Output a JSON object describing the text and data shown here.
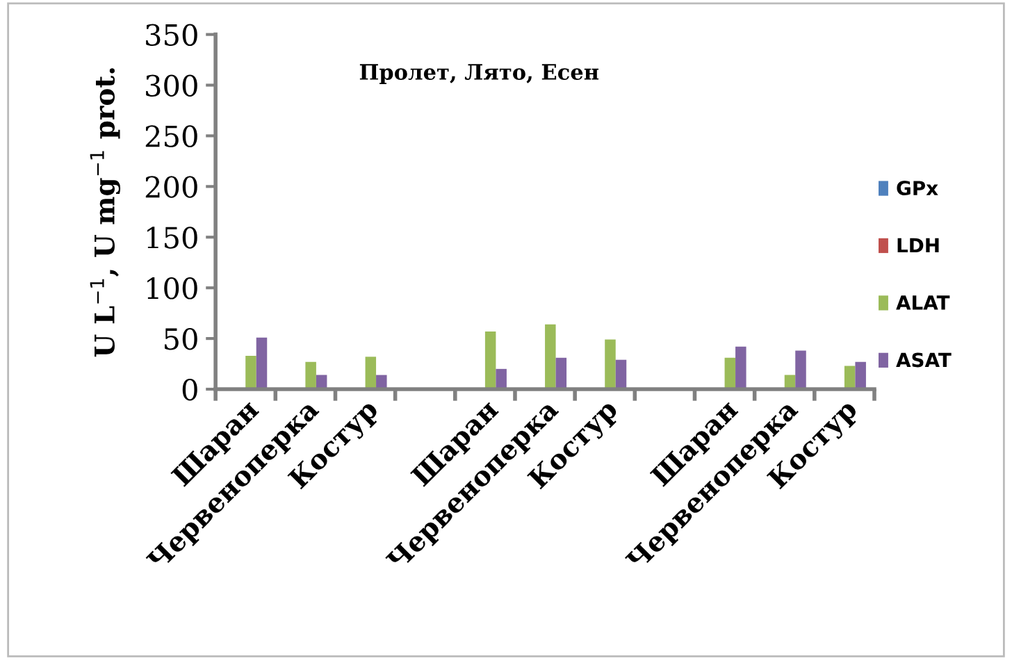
{
  "chart_data": {
    "type": "bar",
    "title": "Пролет, Лято, Есен",
    "ylabel": "U L$^{−1}$, U mg$^{−1}$ prot.",
    "categories": [
      "Шаран",
      "Червеноперка",
      "Костур",
      null,
      "Шаран",
      "Червеноперка",
      "Костур",
      null,
      "Шаран",
      "Червеноперка",
      "Костур"
    ],
    "series": [
      {
        "name": "GPx",
        "color": "#4f81bd",
        "values": [
          null,
          null,
          null,
          null,
          null,
          null,
          null,
          null,
          null,
          null,
          null
        ]
      },
      {
        "name": "LDH",
        "color": "#c0504d",
        "values": [
          null,
          null,
          null,
          null,
          null,
          null,
          null,
          null,
          null,
          null,
          null
        ]
      },
      {
        "name": "ALAT",
        "color": "#9bbb59",
        "values": [
          33,
          27,
          32,
          null,
          57,
          64,
          49,
          null,
          31,
          14,
          23
        ]
      },
      {
        "name": "ASAT",
        "color": "#8064a2",
        "values": [
          51,
          14,
          14,
          null,
          20,
          31,
          29,
          null,
          42,
          38,
          27
        ]
      }
    ],
    "ylim": [
      0,
      350
    ],
    "yticks": [
      0,
      50,
      100,
      150,
      200,
      250,
      300,
      350
    ],
    "grid": false,
    "legend": "right"
  }
}
